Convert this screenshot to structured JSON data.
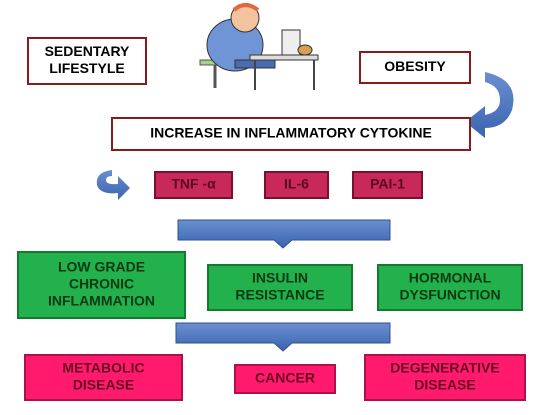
{
  "nodes": [
    {
      "lines": [
        "SEDENTARY",
        "LIFESTYLE"
      ]
    },
    {
      "lines": [
        "OBESITY"
      ]
    },
    {
      "lines": [
        "INCREASE IN INFLAMMATORY CYTOKINE"
      ]
    },
    {
      "lines": [
        "TNF -α"
      ]
    },
    {
      "lines": [
        "IL-6"
      ]
    },
    {
      "lines": [
        "PAI-1"
      ]
    },
    {
      "lines": [
        "LOW GRADE",
        "CHRONIC",
        "INFLAMMATION"
      ]
    },
    {
      "lines": [
        "INSULIN",
        "RESISTANCE"
      ]
    },
    {
      "lines": [
        "HORMONAL",
        "DYSFUNCTION"
      ]
    },
    {
      "lines": [
        "METABOLIC",
        "DISEASE"
      ]
    },
    {
      "lines": [
        "CANCER"
      ]
    },
    {
      "lines": [
        "DEGENERATIVE",
        "DISEASE"
      ]
    }
  ]
}
